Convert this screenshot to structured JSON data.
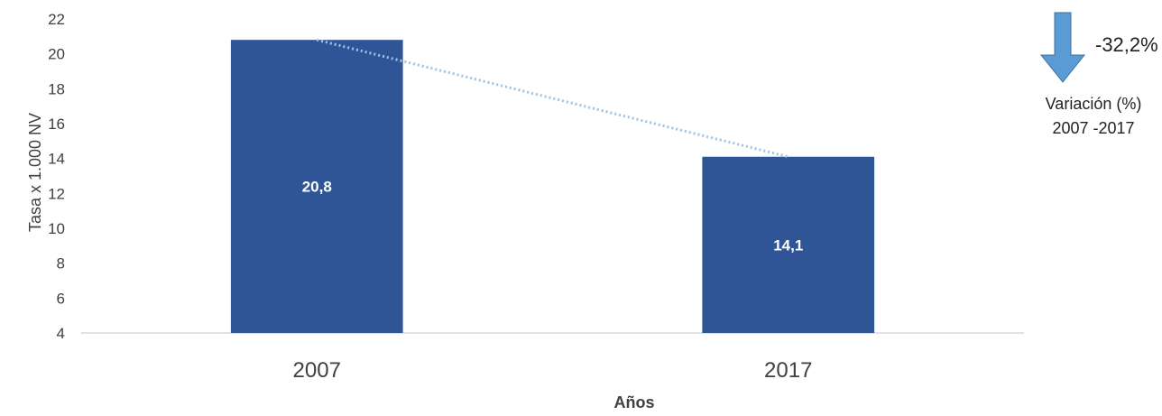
{
  "chart_data": {
    "type": "bar",
    "categories": [
      "2007",
      "2017"
    ],
    "values": [
      20.8,
      14.1
    ],
    "value_labels": [
      "20,8",
      "14,1"
    ],
    "xlabel": "Años",
    "ylabel": "Tasa x 1.000 NV",
    "ylim": [
      4,
      22
    ],
    "yticks": [
      4,
      6,
      8,
      10,
      12,
      14,
      16,
      18,
      20,
      22
    ],
    "grid": false,
    "legend": "none",
    "trendline": "dotted",
    "colors": {
      "bar": "#2F5597",
      "trend": "#9DC3E6",
      "arrow": "#5B9BD5",
      "axis": "#D9D9D9"
    },
    "annotation": {
      "value": "-32,2%",
      "caption_line1": "Variación (%)",
      "caption_line2": "2007 -2017",
      "icon": "down-arrow-icon"
    }
  }
}
